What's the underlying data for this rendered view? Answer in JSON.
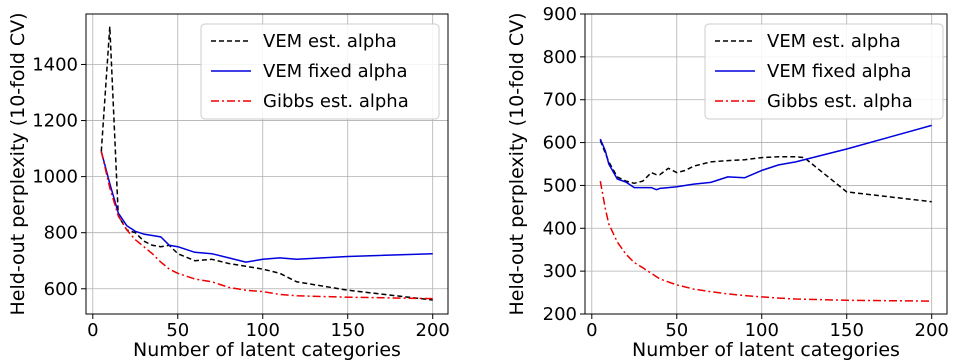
{
  "chart_data": [
    {
      "type": "line",
      "xlabel": "Number of latent categories",
      "ylabel": "Held-out perplexity (10-fold CV)",
      "xlim": [
        -4,
        209
      ],
      "ylim": [
        510,
        1580
      ],
      "xticks": [
        0,
        50,
        100,
        150,
        200
      ],
      "yticks": [
        600,
        800,
        1000,
        1200,
        1400
      ],
      "grid": true,
      "legend_position": "top-right",
      "series": [
        {
          "name": "VEM est. alpha",
          "color": "#000000",
          "dash": "dashed",
          "x": [
            5,
            10,
            15,
            20,
            25,
            30,
            35,
            40,
            45,
            50,
            60,
            70,
            80,
            90,
            100,
            110,
            120,
            150,
            200
          ],
          "y": [
            1090,
            1535,
            860,
            810,
            800,
            770,
            755,
            750,
            755,
            725,
            700,
            705,
            690,
            680,
            670,
            655,
            625,
            595,
            560
          ]
        },
        {
          "name": "VEM fixed alpha",
          "color": "#0000dd",
          "dash": "solid",
          "x": [
            5,
            10,
            15,
            20,
            25,
            30,
            35,
            40,
            45,
            50,
            60,
            70,
            80,
            90,
            100,
            110,
            120,
            150,
            200
          ],
          "y": [
            1090,
            975,
            870,
            825,
            805,
            795,
            790,
            785,
            755,
            750,
            730,
            725,
            710,
            695,
            705,
            710,
            705,
            715,
            725
          ]
        },
        {
          "name": "Gibbs est. alpha",
          "color": "#ee0000",
          "dash": "dashdot",
          "x": [
            5,
            10,
            15,
            20,
            25,
            30,
            35,
            40,
            45,
            50,
            60,
            70,
            80,
            90,
            100,
            110,
            120,
            150,
            200
          ],
          "y": [
            1090,
            960,
            860,
            810,
            775,
            750,
            725,
            695,
            670,
            655,
            635,
            625,
            605,
            595,
            590,
            580,
            575,
            570,
            565
          ]
        }
      ]
    },
    {
      "type": "line",
      "xlabel": "Number of latent categories",
      "ylabel": "Held-out perplexity (10-fold CV)",
      "xlim": [
        -4,
        209
      ],
      "ylim": [
        200,
        900
      ],
      "xticks": [
        0,
        50,
        100,
        150,
        200
      ],
      "yticks": [
        200,
        300,
        400,
        500,
        600,
        700,
        800,
        900
      ],
      "grid": true,
      "legend_position": "top-right",
      "series": [
        {
          "name": "VEM est. alpha",
          "color": "#000000",
          "dash": "dashed",
          "x": [
            5,
            8,
            10,
            15,
            20,
            25,
            30,
            35,
            38,
            40,
            45,
            50,
            55,
            60,
            70,
            80,
            90,
            100,
            110,
            120,
            125,
            150,
            200
          ],
          "y": [
            605,
            575,
            555,
            520,
            510,
            505,
            510,
            530,
            525,
            525,
            540,
            530,
            535,
            545,
            555,
            558,
            560,
            565,
            567,
            567,
            565,
            485,
            462
          ]
        },
        {
          "name": "VEM fixed alpha",
          "color": "#0000dd",
          "dash": "solid",
          "x": [
            5,
            8,
            10,
            15,
            20,
            25,
            30,
            35,
            38,
            40,
            45,
            50,
            60,
            70,
            80,
            90,
            100,
            110,
            120,
            150,
            200
          ],
          "y": [
            608,
            580,
            550,
            515,
            508,
            495,
            495,
            495,
            490,
            493,
            495,
            497,
            503,
            507,
            520,
            518,
            535,
            548,
            555,
            585,
            640
          ]
        },
        {
          "name": "Gibbs est. alpha",
          "color": "#ee0000",
          "dash": "dashdot",
          "x": [
            5,
            8,
            10,
            15,
            20,
            25,
            30,
            35,
            40,
            45,
            50,
            60,
            70,
            80,
            90,
            100,
            110,
            120,
            150,
            200
          ],
          "y": [
            510,
            445,
            410,
            368,
            340,
            320,
            308,
            295,
            282,
            275,
            268,
            258,
            252,
            247,
            243,
            240,
            237,
            235,
            232,
            230
          ]
        }
      ]
    }
  ]
}
